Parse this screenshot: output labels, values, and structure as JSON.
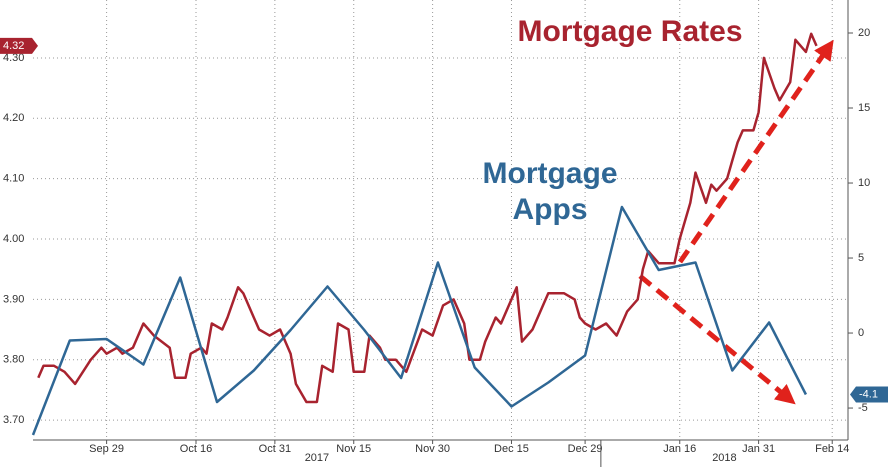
{
  "chart_data": {
    "type": "line",
    "xlim": [
      "2017-09-15",
      "2018-02-17"
    ],
    "xticks": [
      {
        "value": "2017-09-29",
        "label": "Sep 29"
      },
      {
        "value": "2017-10-16",
        "label": "Oct 16"
      },
      {
        "value": "2017-10-31",
        "label": "Oct 31"
      },
      {
        "value": "2017-11-15",
        "label": "Nov 15"
      },
      {
        "value": "2017-11-30",
        "label": "Nov 30"
      },
      {
        "value": "2017-12-15",
        "label": "Dec 15"
      },
      {
        "value": "2017-12-29",
        "label": "Dec 29"
      },
      {
        "value": "2018-01-16",
        "label": "Jan 16"
      },
      {
        "value": "2018-01-31",
        "label": "Jan 31"
      },
      {
        "value": "2018-02-14",
        "label": "Feb 14"
      }
    ],
    "x_groups": [
      "2017",
      "2018"
    ],
    "ylim": [
      3.667,
      4.396
    ],
    "yticks": [
      {
        "value": 3.7,
        "label": "3.70"
      },
      {
        "value": 3.8,
        "label": "3.80"
      },
      {
        "value": 3.9,
        "label": "3.90"
      },
      {
        "value": 4.0,
        "label": "4.00"
      },
      {
        "value": 4.1,
        "label": "4.10"
      },
      {
        "value": 4.2,
        "label": "4.20"
      },
      {
        "value": 4.3,
        "label": "4.30"
      }
    ],
    "y2lim": [
      -7.13,
      22.2
    ],
    "y2ticks": [
      -5,
      0,
      5,
      10,
      15,
      20
    ],
    "grid": true,
    "series": [
      {
        "name": "Mortgage Rates",
        "color": "#a8232f",
        "last_label": "4.32",
        "x": [
          "2017-09-16",
          "2017-09-17",
          "2017-09-19",
          "2017-09-21",
          "2017-09-23",
          "2017-09-26",
          "2017-09-28",
          "2017-09-29",
          "2017-10-01",
          "2017-10-02",
          "2017-10-04",
          "2017-10-06",
          "2017-10-08",
          "2017-10-11",
          "2017-10-12",
          "2017-10-14",
          "2017-10-15",
          "2017-10-17",
          "2017-10-18",
          "2017-10-19",
          "2017-10-21",
          "2017-10-22",
          "2017-10-24",
          "2017-10-25",
          "2017-10-27",
          "2017-10-28",
          "2017-10-30",
          "2017-11-01",
          "2017-11-03",
          "2017-11-04",
          "2017-11-06",
          "2017-11-08",
          "2017-11-09",
          "2017-11-11",
          "2017-11-12",
          "2017-11-14",
          "2017-11-15",
          "2017-11-17",
          "2017-11-18",
          "2017-11-20",
          "2017-11-21",
          "2017-11-23",
          "2017-11-25",
          "2017-11-28",
          "2017-11-30",
          "2017-12-02",
          "2017-12-04",
          "2017-12-06",
          "2017-12-07",
          "2017-12-09",
          "2017-12-10",
          "2017-12-12",
          "2017-12-13",
          "2017-12-16",
          "2017-12-17",
          "2017-12-19",
          "2017-12-21",
          "2017-12-22",
          "2017-12-24",
          "2017-12-25",
          "2017-12-27",
          "2017-12-28",
          "2017-12-29",
          "2017-12-31",
          "2018-01-02",
          "2018-01-04",
          "2018-01-05",
          "2018-01-06",
          "2018-01-08",
          "2018-01-09",
          "2018-01-10",
          "2018-01-12",
          "2018-01-15",
          "2018-01-16",
          "2018-01-18",
          "2018-01-19",
          "2018-01-21",
          "2018-01-22",
          "2018-01-23",
          "2018-01-25",
          "2018-01-26",
          "2018-01-27",
          "2018-01-28",
          "2018-01-30",
          "2018-01-31",
          "2018-02-01",
          "2018-02-03",
          "2018-02-04",
          "2018-02-06",
          "2018-02-07",
          "2018-02-09",
          "2018-02-10",
          "2018-02-11"
        ],
        "values": [
          3.77,
          3.79,
          3.79,
          3.78,
          3.76,
          3.8,
          3.82,
          3.81,
          3.82,
          3.81,
          3.82,
          3.86,
          3.84,
          3.82,
          3.77,
          3.77,
          3.81,
          3.82,
          3.81,
          3.86,
          3.85,
          3.87,
          3.92,
          3.91,
          3.87,
          3.85,
          3.84,
          3.85,
          3.81,
          3.76,
          3.73,
          3.73,
          3.79,
          3.78,
          3.86,
          3.85,
          3.78,
          3.78,
          3.84,
          3.82,
          3.8,
          3.8,
          3.78,
          3.85,
          3.84,
          3.89,
          3.9,
          3.86,
          3.8,
          3.8,
          3.83,
          3.87,
          3.86,
          3.92,
          3.83,
          3.85,
          3.89,
          3.91,
          3.91,
          3.91,
          3.9,
          3.87,
          3.86,
          3.85,
          3.86,
          3.84,
          3.86,
          3.88,
          3.9,
          3.95,
          3.98,
          3.96,
          3.96,
          4.0,
          4.06,
          4.11,
          4.06,
          4.09,
          4.08,
          4.1,
          4.13,
          4.16,
          4.18,
          4.18,
          4.21,
          4.3,
          4.25,
          4.23,
          4.26,
          4.33,
          4.31,
          4.34,
          4.32
        ]
      },
      {
        "name": "Mortgage Apps",
        "color": "#2f6795",
        "axis": "y2",
        "last_label": "-4.1",
        "x": [
          "2017-09-15",
          "2017-09-22",
          "2017-09-29",
          "2017-10-06",
          "2017-10-13",
          "2017-10-20",
          "2017-10-27",
          "2017-11-03",
          "2017-11-10",
          "2017-11-17",
          "2017-11-24",
          "2017-12-01",
          "2017-12-08",
          "2017-12-15",
          "2017-12-22",
          "2017-12-29",
          "2018-01-05",
          "2018-01-12",
          "2018-01-19",
          "2018-01-26",
          "2018-02-02",
          "2018-02-09"
        ],
        "values": [
          -6.8,
          -0.5,
          -0.4,
          -2.1,
          3.7,
          -4.6,
          -2.5,
          0.2,
          3.1,
          0.2,
          -3.0,
          4.7,
          -2.3,
          -4.9,
          -3.3,
          -1.5,
          8.4,
          4.2,
          4.7,
          -2.5,
          0.7,
          -4.1
        ]
      }
    ]
  }
}
